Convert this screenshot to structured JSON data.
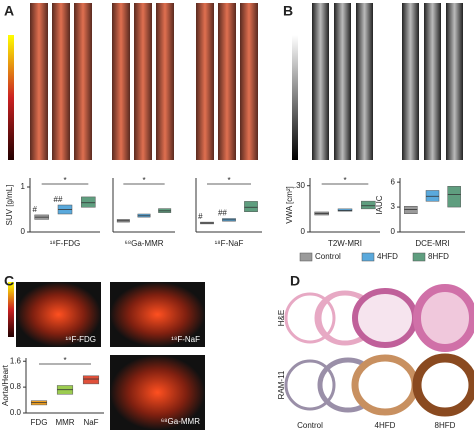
{
  "panels": [
    "A",
    "B",
    "C",
    "D"
  ],
  "legend": [
    {
      "name": "Control",
      "color": "#9a9a9a"
    },
    {
      "name": "4HFD",
      "color": "#5aa9dc"
    },
    {
      "name": "8HFD",
      "color": "#5f9e7f"
    }
  ],
  "chart_data": [
    {
      "type": "box",
      "xlabel": "¹⁸F-FDG",
      "ylabel": "SUV [g/mL]",
      "ylim": [
        0,
        1.2
      ],
      "yticks": [
        0,
        1
      ],
      "annotations": [
        "#",
        "##",
        "*"
      ],
      "boxes": [
        {
          "q1": 0.28,
          "median": 0.33,
          "q3": 0.38
        },
        {
          "q1": 0.4,
          "median": 0.5,
          "q3": 0.6
        },
        {
          "q1": 0.55,
          "median": 0.65,
          "q3": 0.78
        }
      ]
    },
    {
      "type": "box",
      "xlabel": "⁶⁸Ga-MMR",
      "ylim": [
        0,
        1.2
      ],
      "annotations": [
        "*"
      ],
      "boxes": [
        {
          "q1": 0.22,
          "median": 0.25,
          "q3": 0.28
        },
        {
          "q1": 0.33,
          "median": 0.36,
          "q3": 0.4
        },
        {
          "q1": 0.43,
          "median": 0.47,
          "q3": 0.52
        }
      ]
    },
    {
      "type": "box",
      "xlabel": "¹⁸F-NaF",
      "ylim": [
        0,
        1.2
      ],
      "annotations": [
        "#",
        "##",
        "*"
      ],
      "boxes": [
        {
          "q1": 0.18,
          "median": 0.2,
          "q3": 0.22
        },
        {
          "q1": 0.24,
          "median": 0.27,
          "q3": 0.3
        },
        {
          "q1": 0.45,
          "median": 0.55,
          "q3": 0.68
        }
      ]
    },
    {
      "type": "box",
      "xlabel": "T2W-MRI",
      "ylabel": "VWA [cm²]",
      "ylim": [
        0,
        0.35
      ],
      "yticks": [
        0,
        {
          "value": 0.3,
          "label": ".30"
        }
      ],
      "annotations": [
        "*"
      ],
      "boxes": [
        {
          "q1": 0.11,
          "median": 0.12,
          "q3": 0.13
        },
        {
          "q1": 0.135,
          "median": 0.14,
          "q3": 0.15
        },
        {
          "q1": 0.15,
          "median": 0.17,
          "q3": 0.2
        }
      ]
    },
    {
      "type": "box",
      "xlabel": "DCE-MRI",
      "ylabel": "IAUC",
      "ylim": [
        0,
        6.5
      ],
      "yticks": [
        0,
        3,
        6
      ],
      "boxes": [
        {
          "q1": 2.2,
          "median": 2.7,
          "q3": 3.1
        },
        {
          "q1": 3.7,
          "median": 4.3,
          "q3": 5
        },
        {
          "q1": 3,
          "median": 4.5,
          "q3": 5.5
        }
      ]
    },
    {
      "type": "box",
      "ylabel": "Aorta/Heart",
      "ylim": [
        0,
        1.7
      ],
      "yticks": [
        {
          "value": 0,
          "label": "0.0"
        },
        {
          "value": 0.8,
          "label": "0.8"
        },
        1.6
      ],
      "annotations": [
        "*"
      ],
      "categories": [
        "FDG",
        "MMR",
        "NaF"
      ],
      "boxes": [
        {
          "q1": 0.25,
          "median": 0.32,
          "q3": 0.38,
          "color": "#f0a020"
        },
        {
          "q1": 0.58,
          "median": 0.72,
          "q3": 0.85,
          "color": "#9ccc50"
        },
        {
          "q1": 0.9,
          "median": 1.05,
          "q3": 1.15,
          "color": "#e0503a"
        }
      ]
    }
  ],
  "images": {
    "pet_labels": [
      "¹⁸F-FDG",
      "¹⁸F-NaF",
      "⁶⁸Ga-MMR"
    ],
    "histology_rows": [
      "H&E",
      "RAM-11"
    ],
    "histology_columns": [
      "Control",
      "4HFD",
      "8HFD"
    ]
  }
}
